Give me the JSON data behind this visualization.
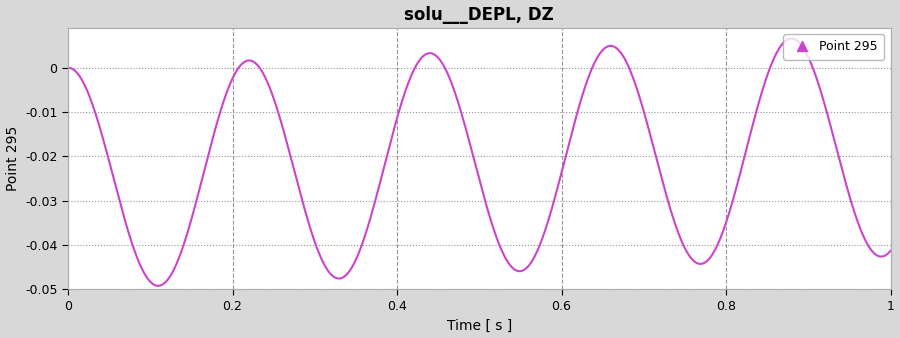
{
  "title": "solu___DEPL, DZ",
  "xlabel": "Time [ s ]",
  "ylabel": "Point 295",
  "line_color": "#cc44cc",
  "marker_color": "#cc44cc",
  "legend_label": "Point 295",
  "xlim": [
    0,
    1
  ],
  "ylim": [
    -0.05,
    0.009
  ],
  "yticks": [
    0,
    -0.01,
    -0.02,
    -0.03,
    -0.04,
    -0.05
  ],
  "xticks": [
    0,
    0.2,
    0.4,
    0.6,
    0.8,
    1.0
  ],
  "plot_bg_color": "#ffffff",
  "fig_bg_color": "#d8d8d8",
  "freq": 4.55,
  "amp": 0.025,
  "drift": 0.0075,
  "title_fontsize": 12,
  "axis_label_fontsize": 10,
  "tick_fontsize": 9
}
